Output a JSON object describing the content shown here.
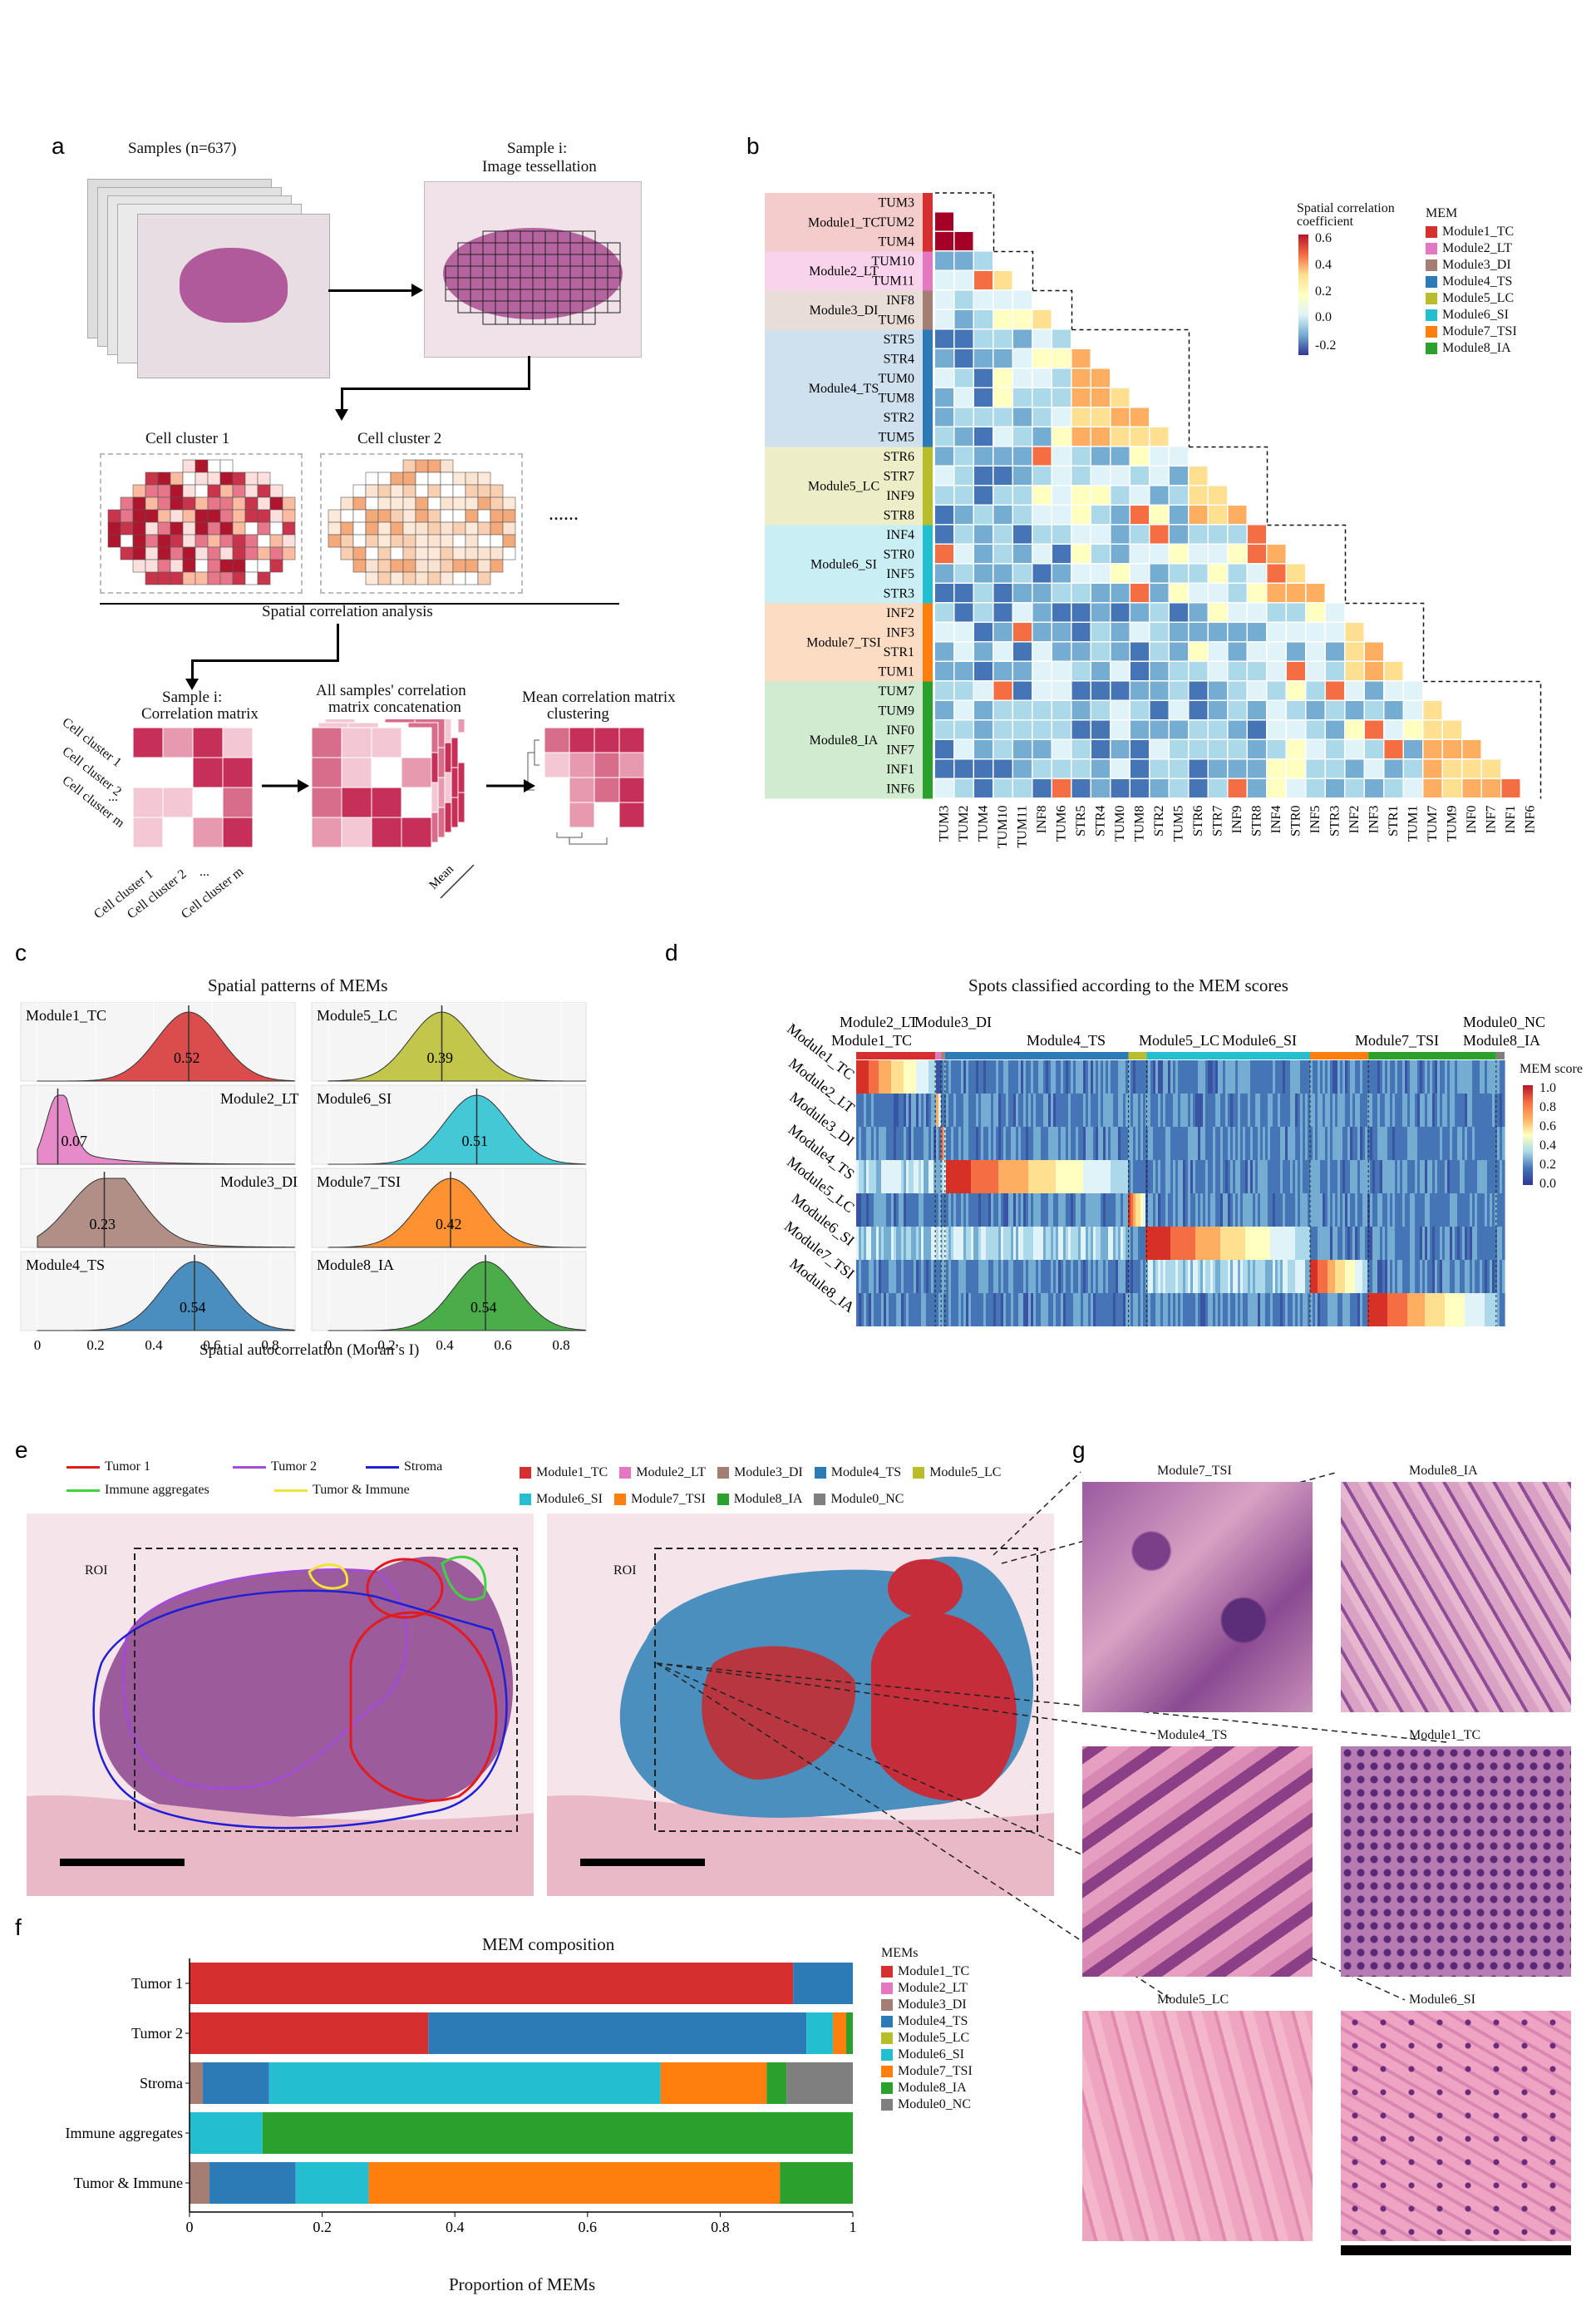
{
  "panels": {
    "a": "a",
    "b": "b",
    "c": "c",
    "d": "d",
    "e": "e",
    "f": "f",
    "g": "g"
  },
  "modules": [
    {
      "name": "Module1_TC",
      "color": "#d62f2f"
    },
    {
      "name": "Module2_LT",
      "color": "#e377c2"
    },
    {
      "name": "Module3_DI",
      "color": "#a47d73"
    },
    {
      "name": "Module4_TS",
      "color": "#2c7bb6"
    },
    {
      "name": "Module5_LC",
      "color": "#b8bd2b"
    },
    {
      "name": "Module6_SI",
      "color": "#23bfd0"
    },
    {
      "name": "Module7_TSI",
      "color": "#ff7f0e"
    },
    {
      "name": "Module8_IA",
      "color": "#2ca02c"
    },
    {
      "name": "Module0_NC",
      "color": "#7f7f7f"
    }
  ],
  "panel_a": {
    "samples_label": "Samples (n=637)",
    "sample_i_label": "Sample i:",
    "tessellation_label": "Image tessellation",
    "cluster1_label": "Cell cluster 1",
    "cluster2_label": "Cell cluster 2",
    "ellipsis": "......",
    "spatial_label": "Spatial correlation analysis",
    "corr_title1": "Sample i:",
    "corr_title2": "Correlation matrix",
    "concat_title1": "All samples' correlation",
    "concat_title2": "matrix concatenation",
    "mean_title1": "Mean correlation matrix",
    "mean_title2": "clustering",
    "mean_label": "Mean",
    "row_labels": [
      "Cell cluster 1",
      "Cell cluster 2",
      "...",
      "Cell cluster m"
    ],
    "col_labels": [
      "Cell cluster 1",
      "Cell cluster 2",
      "...",
      "Cell cluster m"
    ]
  },
  "panel_b": {
    "legend_title1": "Spatial correlation",
    "legend_title2": "coefficient",
    "legend_ticks": [
      "0.6",
      "0.4",
      "0.2",
      "0.0",
      "-0.2"
    ],
    "mem_title": "MEM",
    "features": [
      "TUM3",
      "TUM2",
      "TUM4",
      "TUM10",
      "TUM11",
      "INF8",
      "TUM6",
      "STR5",
      "STR4",
      "TUM0",
      "TUM8",
      "STR2",
      "TUM5",
      "STR6",
      "STR7",
      "INF9",
      "STR8",
      "INF4",
      "STR0",
      "INF5",
      "STR3",
      "INF2",
      "INF3",
      "STR1",
      "TUM1",
      "TUM7",
      "TUM9",
      "INF0",
      "INF7",
      "INF1",
      "INF6"
    ],
    "groups": [
      {
        "name": "Module1_TC",
        "count": 3
      },
      {
        "name": "Module2_LT",
        "count": 2
      },
      {
        "name": "Module3_DI",
        "count": 2
      },
      {
        "name": "Module4_TS",
        "count": 6
      },
      {
        "name": "Module5_LC",
        "count": 4
      },
      {
        "name": "Module6_SI",
        "count": 4
      },
      {
        "name": "Module7_TSI",
        "count": 4
      },
      {
        "name": "Module8_IA",
        "count": 6
      }
    ]
  },
  "panel_c": {
    "title": "Spatial patterns of MEMs",
    "xlabel": "Spatial autocorrelation (Moran’s I)",
    "ticks": [
      "0",
      "0.2",
      "0.4",
      "0.6",
      "0.8"
    ],
    "densities": [
      {
        "name": "Module1_TC",
        "median": "0.52",
        "m": 0.52
      },
      {
        "name": "Module2_LT",
        "median": "0.07",
        "m": 0.07
      },
      {
        "name": "Module3_DI",
        "median": "0.23",
        "m": 0.23
      },
      {
        "name": "Module4_TS",
        "median": "0.54",
        "m": 0.54
      },
      {
        "name": "Module5_LC",
        "median": "0.39",
        "m": 0.39
      },
      {
        "name": "Module6_SI",
        "median": "0.51",
        "m": 0.51
      },
      {
        "name": "Module7_TSI",
        "median": "0.42",
        "m": 0.42
      },
      {
        "name": "Module8_IA",
        "median": "0.54",
        "m": 0.54
      }
    ]
  },
  "panel_d": {
    "title": "Spots classified according to the MEM scores",
    "legend_title": "MEM score",
    "legend_ticks": [
      "1.0",
      "0.8",
      "0.6",
      "0.4",
      "0.2",
      "0.0"
    ],
    "top_labels": [
      "Module2_LT",
      "Module3_DI",
      "Module1_TC",
      "Module4_TS",
      "Module5_LC",
      "Module6_SI",
      "Module7_TSI",
      "Module8_IA",
      "Module0_NC"
    ],
    "rows": [
      "Module1_TC",
      "Module2_LT",
      "Module3_DI",
      "Module4_TS",
      "Module5_LC",
      "Module6_SI",
      "Module7_TSI",
      "Module8_IA"
    ]
  },
  "panel_e": {
    "legend": [
      {
        "name": "Tumor 1",
        "color": "#e31a1c"
      },
      {
        "name": "Tumor 2",
        "color": "#a24bd6"
      },
      {
        "name": "Stroma",
        "color": "#1f1fd6"
      },
      {
        "name": "Immune aggregates",
        "color": "#3fd43f"
      },
      {
        "name": "Tumor & Immune",
        "color": "#f2e23a"
      }
    ],
    "roi": "ROI"
  },
  "panel_g": {
    "tiles": [
      "Module7_TSI",
      "Module8_IA",
      "Module4_TS",
      "Module1_TC",
      "Module5_LC",
      "Module6_SI"
    ]
  },
  "chart_data": {
    "type": "bar",
    "title": "MEM composition",
    "xlabel": "Proportion of MEMs",
    "ylabel": "",
    "legend_title": "MEMs",
    "categories": [
      "Tumor 1",
      "Tumor 2",
      "Stroma",
      "Immune aggregates",
      "Tumor & Immune"
    ],
    "xlim": [
      0,
      1
    ],
    "ticks": [
      "0",
      "0.2",
      "0.4",
      "0.6",
      "0.8",
      "1"
    ],
    "series": [
      {
        "name": "Module1_TC",
        "values": [
          0.91,
          0.36,
          0.0,
          0.0,
          0.0
        ]
      },
      {
        "name": "Module2_LT",
        "values": [
          0.0,
          0.0,
          0.0,
          0.0,
          0.0
        ]
      },
      {
        "name": "Module3_DI",
        "values": [
          0.0,
          0.0,
          0.02,
          0.0,
          0.03
        ]
      },
      {
        "name": "Module4_TS",
        "values": [
          0.09,
          0.57,
          0.1,
          0.0,
          0.13
        ]
      },
      {
        "name": "Module5_LC",
        "values": [
          0.0,
          0.0,
          0.0,
          0.0,
          0.0
        ]
      },
      {
        "name": "Module6_SI",
        "values": [
          0.0,
          0.04,
          0.59,
          0.11,
          0.11
        ]
      },
      {
        "name": "Module7_TSI",
        "values": [
          0.0,
          0.02,
          0.16,
          0.0,
          0.62
        ]
      },
      {
        "name": "Module8_IA",
        "values": [
          0.0,
          0.01,
          0.03,
          0.89,
          0.11
        ]
      },
      {
        "name": "Module0_NC",
        "values": [
          0.0,
          0.0,
          0.1,
          0.0,
          0.0
        ]
      }
    ]
  }
}
